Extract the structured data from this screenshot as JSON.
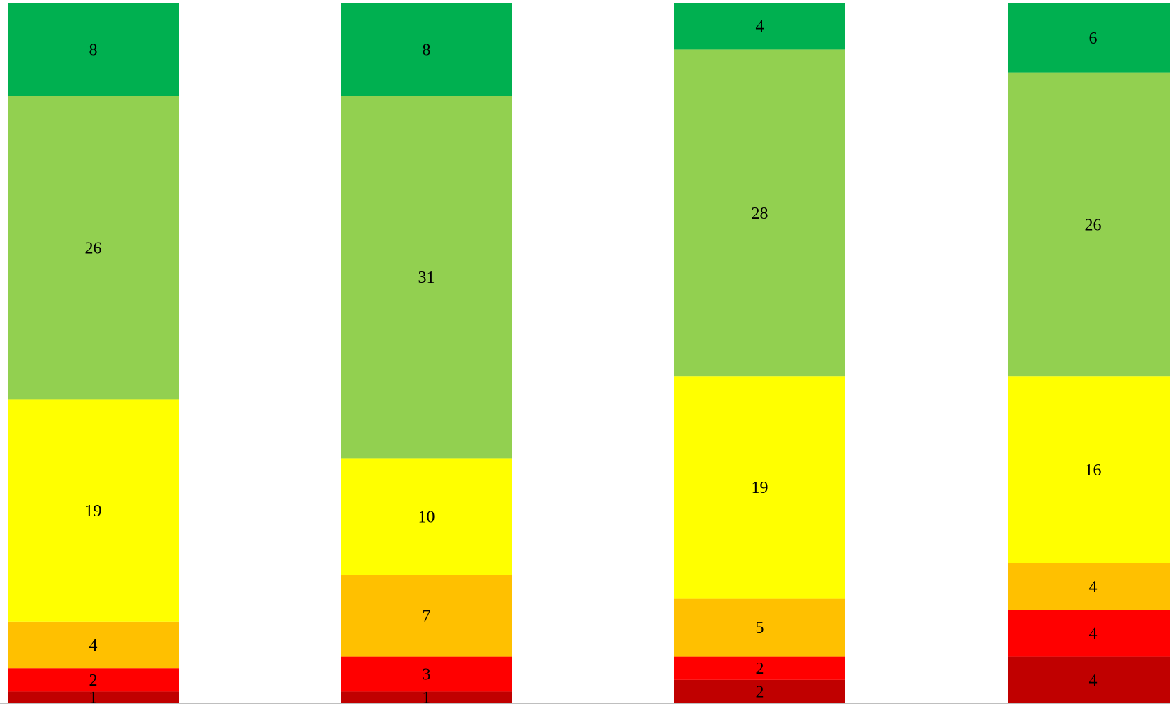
{
  "chart_data": {
    "type": "bar",
    "stacked": true,
    "orientation": "vertical",
    "title": "",
    "xlabel": "",
    "ylabel": "",
    "categories": [
      "",
      "",
      "",
      ""
    ],
    "ylim": [
      0,
      60
    ],
    "grid": false,
    "legend": "none",
    "series": [
      {
        "color": "#C00000",
        "values": [
          1,
          1,
          2,
          4
        ],
        "labels": [
          "1",
          "1",
          "2",
          "4"
        ]
      },
      {
        "color": "#FF0000",
        "values": [
          2,
          3,
          2,
          4
        ],
        "labels": [
          "2",
          "3",
          "2",
          "4"
        ]
      },
      {
        "color": "#FFC000",
        "values": [
          4,
          7,
          5,
          4
        ],
        "labels": [
          "4",
          "7",
          "5",
          "4"
        ]
      },
      {
        "color": "#FFFF00",
        "values": [
          19,
          10,
          19,
          16
        ],
        "labels": [
          "19",
          "10",
          "19",
          "16"
        ]
      },
      {
        "color": "#92D050",
        "values": [
          26,
          31,
          28,
          26
        ],
        "labels": [
          "26",
          "31",
          "28",
          "26"
        ]
      },
      {
        "color": "#00B050",
        "values": [
          8,
          8,
          4,
          6
        ],
        "labels": [
          "8",
          "8",
          "4",
          "6"
        ]
      }
    ]
  }
}
